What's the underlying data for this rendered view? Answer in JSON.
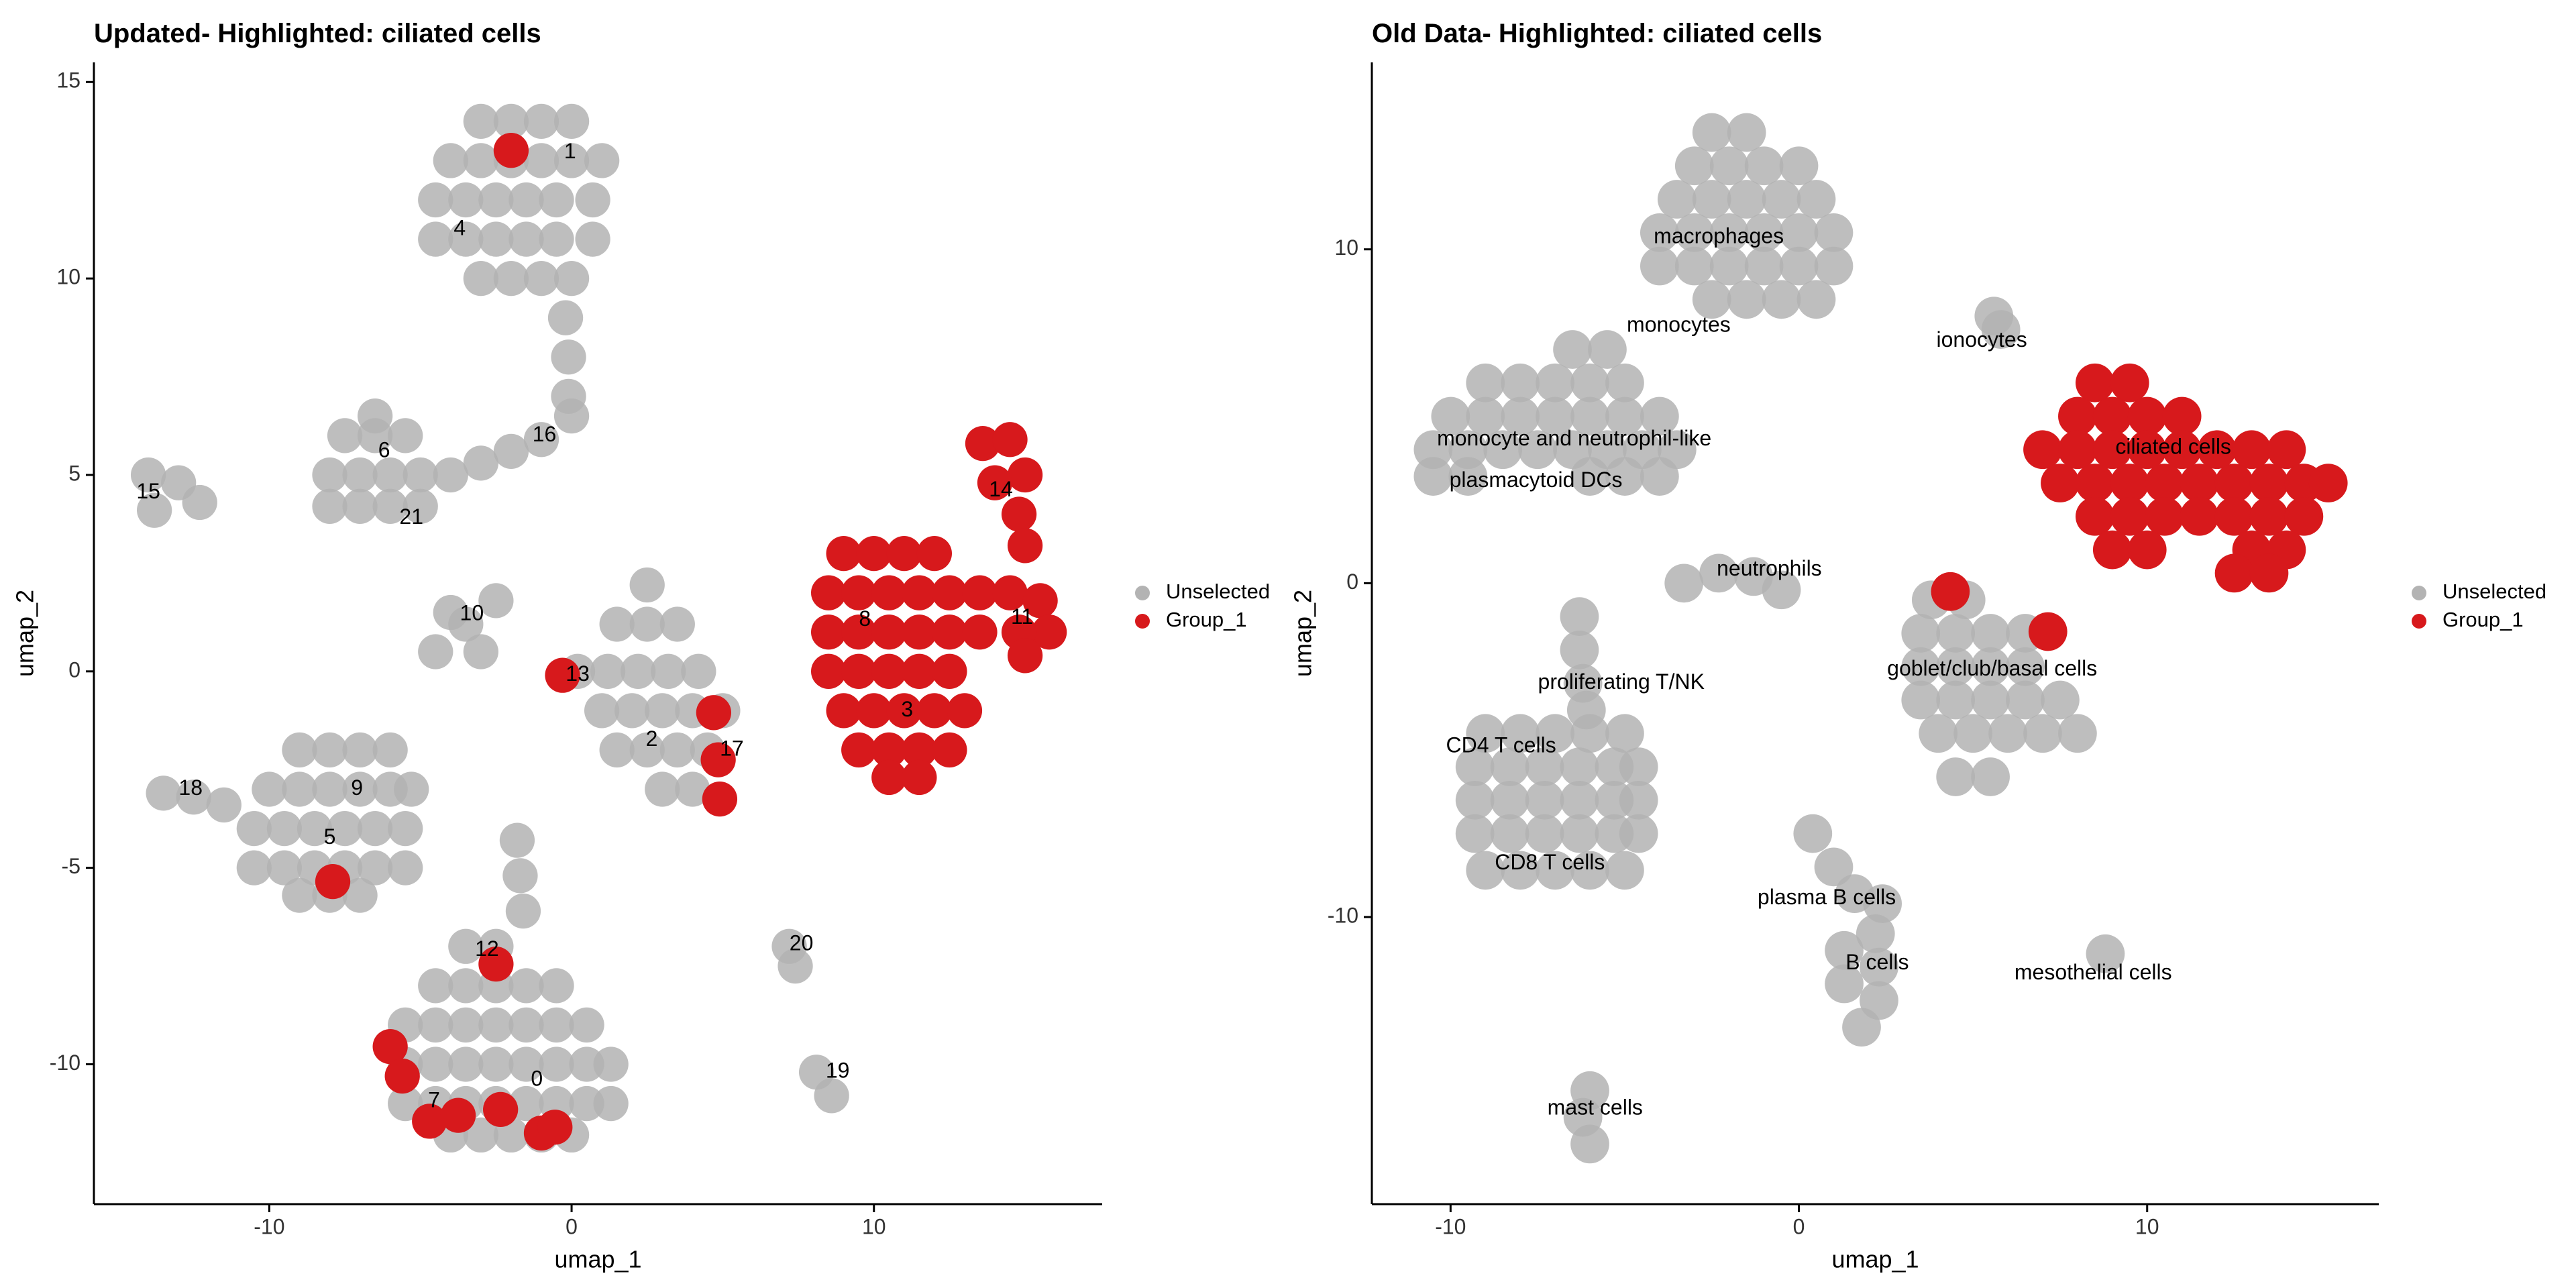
{
  "chart_data": [
    {
      "type": "scatter",
      "title": "Updated- Highlighted: ciliated cells",
      "x_label": "umap_1",
      "y_label": "umap_2",
      "xlim": [
        -15.8,
        17.55
      ],
      "ylim": [
        -13.56,
        15.5
      ],
      "xticks": [
        -10,
        0,
        10
      ],
      "yticks": [
        -10,
        -5,
        0,
        5,
        10,
        15
      ],
      "legend": "right",
      "series": [
        {
          "name": "Unselected",
          "color": "#b3b3b3",
          "x": [
            -3,
            -2,
            -1,
            0,
            -4,
            -3,
            -2,
            -1,
            0,
            1,
            -4.5,
            -3.5,
            -2.5,
            -1.5,
            -0.5,
            0.7,
            -4.5,
            -3.5,
            -2.5,
            -1.5,
            -0.5,
            0.7,
            -3,
            -2,
            -1,
            0,
            -0.2,
            -0.1,
            -0.1,
            0,
            -3,
            -2,
            -1,
            -6.5,
            -7.5,
            -6.5,
            -5.5,
            -8,
            -7,
            -6,
            -5,
            -4,
            -8,
            -7,
            -6,
            -5,
            -14,
            -13,
            -12.3,
            -13.8,
            -4.5,
            -3.5,
            -2.5,
            -4,
            -3,
            2.5,
            1.5,
            2.5,
            3.5,
            0.2,
            1.2,
            2.2,
            3.2,
            4.2,
            1,
            2,
            3,
            4,
            5,
            1.5,
            2.5,
            3.5,
            4.5,
            3,
            4,
            -9,
            -8,
            -7,
            -6,
            -10,
            -9,
            -8,
            -7,
            -6,
            -5.3,
            -10.5,
            -9.5,
            -8.5,
            -7.5,
            -6.5,
            -5.5,
            -10.5,
            -9.5,
            -8.5,
            -7.5,
            -6.5,
            -5.5,
            -9,
            -8,
            -7,
            -13.5,
            -12.5,
            -11.5,
            -3.5,
            -2.5,
            -4.5,
            -3.5,
            -2.5,
            -1.5,
            -0.5,
            -5.5,
            -4.5,
            -3.5,
            -2.5,
            -1.5,
            -0.5,
            0.5,
            -5.5,
            -4.5,
            -3.5,
            -2.5,
            -1.5,
            -0.5,
            0.5,
            1.3,
            -5.5,
            -4.5,
            -3.5,
            -2.5,
            -1.5,
            -0.5,
            0.5,
            1.3,
            -4,
            -3,
            -2,
            -1,
            0,
            -1.8,
            -1.7,
            -1.6,
            7.2,
            7.4,
            8.1,
            8.6
          ],
          "values": [
            14,
            14,
            14,
            14,
            13,
            13,
            13,
            13,
            13,
            13,
            12,
            12,
            12,
            12,
            12,
            12,
            11,
            11,
            11,
            11,
            11,
            11,
            10,
            10,
            10,
            10,
            9,
            8,
            7,
            6.5,
            5.3,
            5.6,
            5.9,
            6.5,
            6,
            6,
            6,
            5,
            5,
            5,
            5,
            5,
            4.2,
            4.2,
            4.2,
            4.2,
            5,
            4.8,
            4.3,
            4.1,
            0.5,
            1.2,
            1.8,
            1.5,
            0.5,
            2.2,
            1.2,
            1.2,
            1.2,
            0,
            0,
            0,
            0,
            0,
            -1,
            -1,
            -1,
            -1,
            -1,
            -2,
            -2,
            -2,
            -2,
            -3,
            -3,
            -2,
            -2,
            -2,
            -2,
            -3,
            -3,
            -3,
            -3,
            -3,
            -3,
            -4,
            -4,
            -4,
            -4,
            -4,
            -4,
            -5,
            -5,
            -5,
            -5,
            -5,
            -5,
            -5.7,
            -5.7,
            -5.7,
            -3.1,
            -3.2,
            -3.4,
            -7,
            -7,
            -8,
            -8,
            -8,
            -8,
            -8,
            -9,
            -9,
            -9,
            -9,
            -9,
            -9,
            -9,
            -10,
            -10,
            -10,
            -10,
            -10,
            -10,
            -10,
            -10,
            -11,
            -11,
            -11,
            -11,
            -11,
            -11,
            -11,
            -11,
            -11.8,
            -11.8,
            -11.8,
            -11.8,
            -11.8,
            -4.3,
            -5.2,
            -6.1,
            -7,
            -7.5,
            -10.2,
            -10.8
          ]
        },
        {
          "name": "Group_1",
          "color": "#d7191c",
          "x": [
            9,
            10,
            11,
            12,
            8.5,
            9.5,
            10.5,
            11.5,
            12.5,
            13.5,
            8.5,
            9.5,
            10.5,
            11.5,
            12.5,
            13.5,
            8.5,
            9.5,
            10.5,
            11.5,
            12.5,
            9,
            10,
            11,
            12,
            13,
            9.5,
            10.5,
            11.5,
            12.5,
            10.5,
            11.5,
            13.6,
            14.5,
            15,
            14,
            14.8,
            15,
            14.5,
            15.5,
            15.8,
            14.8,
            15,
            -2,
            -0.3,
            4.7,
            4.85,
            4.9,
            -7.9,
            -2.5,
            -6,
            -5.6,
            -4.7,
            -3.75,
            -2.35,
            -1,
            -0.55
          ],
          "values": [
            3,
            3,
            3,
            3,
            2,
            2,
            2,
            2,
            2,
            2,
            1,
            1,
            1,
            1,
            1,
            1,
            0,
            0,
            0,
            0,
            0,
            -1,
            -1,
            -1,
            -1,
            -1,
            -2,
            -2,
            -2,
            -2,
            -2.7,
            -2.7,
            5.8,
            5.9,
            5,
            4.8,
            4,
            3.2,
            2,
            1.8,
            1,
            1,
            0.4,
            13.26,
            -0.1,
            -1.05,
            -2.25,
            -3.25,
            -5.35,
            -7.45,
            -9.55,
            -10.3,
            -11.45,
            -11.3,
            -11.15,
            -11.75,
            -11.6
          ]
        }
      ],
      "annotations": [
        {
          "text": "1",
          "x": -0.05,
          "y": 13.2
        },
        {
          "text": "4",
          "x": -3.7,
          "y": 11.25
        },
        {
          "text": "16",
          "x": -0.9,
          "y": 6.0
        },
        {
          "text": "6",
          "x": -6.2,
          "y": 5.6
        },
        {
          "text": "15",
          "x": -14.0,
          "y": 4.55
        },
        {
          "text": "21",
          "x": -5.3,
          "y": 3.9
        },
        {
          "text": "14",
          "x": 14.2,
          "y": 4.6
        },
        {
          "text": "10",
          "x": -3.3,
          "y": 1.45
        },
        {
          "text": "8",
          "x": 9.7,
          "y": 1.3
        },
        {
          "text": "11",
          "x": 14.9,
          "y": 1.35
        },
        {
          "text": "13",
          "x": 0.2,
          "y": -0.1
        },
        {
          "text": "3",
          "x": 11.1,
          "y": -1.0
        },
        {
          "text": "2",
          "x": 2.65,
          "y": -1.75
        },
        {
          "text": "17",
          "x": 5.3,
          "y": -2.0
        },
        {
          "text": "18",
          "x": -12.6,
          "y": -3.0
        },
        {
          "text": "9",
          "x": -7.1,
          "y": -3.0
        },
        {
          "text": "5",
          "x": -8.0,
          "y": -4.25
        },
        {
          "text": "20",
          "x": 7.6,
          "y": -6.95
        },
        {
          "text": "12",
          "x": -2.8,
          "y": -7.1
        },
        {
          "text": "0",
          "x": -1.15,
          "y": -10.4
        },
        {
          "text": "19",
          "x": 8.8,
          "y": -10.2
        },
        {
          "text": "7",
          "x": -4.55,
          "y": -10.95
        }
      ]
    },
    {
      "type": "scatter",
      "title": "Old Data- Highlighted: ciliated cells",
      "x_label": "umap_1",
      "y_label": "umap_2",
      "xlim": [
        -12.26,
        16.65
      ],
      "ylim": [
        -18.6,
        15.6
      ],
      "xticks": [
        -10,
        0,
        10
      ],
      "yticks": [
        -10,
        0,
        10
      ],
      "legend": "right",
      "series": [
        {
          "name": "Unselected",
          "color": "#b3b3b3",
          "x": [
            -2.5,
            -1.5,
            -3,
            -2,
            -1,
            0,
            -3.5,
            -2.5,
            -1.5,
            -0.5,
            0.5,
            -4,
            -3,
            -2,
            -1,
            0,
            1,
            -4,
            -3,
            -2,
            -1,
            0,
            1,
            -2.5,
            -1.5,
            -0.5,
            0.5,
            -6.5,
            -5.5,
            -9,
            -8,
            -7,
            -6,
            -5,
            -10,
            -9,
            -8,
            -7,
            -6,
            -5,
            -4,
            -10.5,
            -9.5,
            -8.5,
            -7.5,
            -6.5,
            -5.5,
            -4.5,
            -3.5,
            -10.5,
            -9.5,
            -6,
            -5,
            -4,
            5.6,
            5.8,
            -3.3,
            -2.3,
            -1.3,
            -0.5,
            -6.3,
            -6.3,
            -6.2,
            -6.1,
            -9,
            -8,
            -7,
            -6,
            -5,
            -9.3,
            -8.3,
            -7.3,
            -6.3,
            -5.3,
            -4.6,
            -9.3,
            -8.3,
            -7.3,
            -6.3,
            -5.3,
            -4.6,
            -9.3,
            -8.3,
            -7.3,
            -6.3,
            -5.3,
            -4.6,
            -9,
            -8,
            -7,
            -6,
            -5,
            3.8,
            4.8,
            3.5,
            4.5,
            5.5,
            6.5,
            3.5,
            4.5,
            5.5,
            6.5,
            3.5,
            4.5,
            5.5,
            6.5,
            7.5,
            4,
            5,
            6,
            7,
            8,
            4.5,
            5.5,
            0.4,
            1,
            1.6,
            2.4,
            2.2,
            1.3,
            2.3,
            1.3,
            2.3,
            1.8,
            8.8,
            -6,
            -6.2,
            -6
          ],
          "values": [
            13.5,
            13.5,
            12.5,
            12.5,
            12.5,
            12.5,
            11.5,
            11.5,
            11.5,
            11.5,
            11.5,
            10.5,
            10.5,
            10.5,
            10.5,
            10.5,
            10.5,
            9.5,
            9.5,
            9.5,
            9.5,
            9.5,
            9.5,
            8.5,
            8.5,
            8.5,
            8.5,
            7,
            7,
            6,
            6,
            6,
            6,
            6,
            5,
            5,
            5,
            5,
            5,
            5,
            5,
            4,
            4,
            4,
            4,
            4,
            4,
            4,
            4,
            3.2,
            3.2,
            3.2,
            3.2,
            3.2,
            8,
            7.6,
            0,
            0.3,
            0.2,
            -0.2,
            -1,
            -2,
            -3,
            -3.8,
            -4.5,
            -4.5,
            -4.5,
            -4.5,
            -4.5,
            -5.5,
            -5.5,
            -5.5,
            -5.5,
            -5.5,
            -5.5,
            -6.5,
            -6.5,
            -6.5,
            -6.5,
            -6.5,
            -6.5,
            -7.5,
            -7.5,
            -7.5,
            -7.5,
            -7.5,
            -7.5,
            -8.6,
            -8.6,
            -8.6,
            -8.6,
            -8.6,
            -0.5,
            -0.5,
            -1.5,
            -1.5,
            -1.5,
            -1.5,
            -2.5,
            -2.5,
            -2.5,
            -2.5,
            -3.5,
            -3.5,
            -3.5,
            -3.5,
            -3.5,
            -4.5,
            -4.5,
            -4.5,
            -4.5,
            -4.5,
            -5.8,
            -5.8,
            -7.5,
            -8.5,
            -9.3,
            -9.6,
            -10.5,
            -11,
            -11.5,
            -12,
            -12.5,
            -13.3,
            -11.1,
            -15.2,
            -16,
            -16.8
          ]
        },
        {
          "name": "Group_1",
          "color": "#d7191c",
          "x": [
            8.5,
            9.5,
            8,
            9,
            10,
            11,
            7,
            8,
            9,
            10,
            11,
            12,
            13,
            14,
            7.5,
            8.5,
            9.5,
            10.5,
            11.5,
            12.5,
            13.5,
            14.5,
            15.2,
            8.5,
            9.5,
            10.5,
            11.5,
            12.5,
            13.5,
            14.5,
            9,
            10,
            13,
            14,
            12.5,
            13.5,
            4.35,
            7.15
          ],
          "values": [
            6,
            6,
            5,
            5,
            5,
            5,
            4,
            4,
            4,
            4,
            4,
            4,
            4,
            4,
            3,
            3,
            3,
            3,
            3,
            3,
            3,
            3,
            3,
            2,
            2,
            2,
            2,
            2,
            2,
            2,
            1,
            1,
            1,
            1,
            0.3,
            0.3,
            -0.25,
            -1.45
          ]
        }
      ],
      "annotations": [
        {
          "text": "macrophages",
          "x": -2.3,
          "y": 10.35
        },
        {
          "text": "monocytes",
          "x": -3.45,
          "y": 7.7
        },
        {
          "text": "ionocytes",
          "x": 5.25,
          "y": 7.25
        },
        {
          "text": "monocyte and neutrophil-like",
          "x": -6.45,
          "y": 4.3
        },
        {
          "text": "ciliated cells",
          "x": 10.75,
          "y": 4.05
        },
        {
          "text": "plasmacytoid DCs",
          "x": -7.55,
          "y": 3.05
        },
        {
          "text": "neutrophils",
          "x": -0.85,
          "y": 0.4
        },
        {
          "text": "goblet/club/basal cells",
          "x": 5.55,
          "y": -2.6
        },
        {
          "text": "proliferating T/NK",
          "x": -5.1,
          "y": -3.0
        },
        {
          "text": "CD4 T cells",
          "x": -8.55,
          "y": -4.9
        },
        {
          "text": "CD8 T cells",
          "x": -7.15,
          "y": -8.4
        },
        {
          "text": "plasma B cells",
          "x": 0.8,
          "y": -9.45
        },
        {
          "text": "B cells",
          "x": 2.25,
          "y": -11.4
        },
        {
          "text": "mesothelial cells",
          "x": 8.45,
          "y": -11.7
        },
        {
          "text": "mast cells",
          "x": -5.85,
          "y": -15.75
        }
      ]
    }
  ]
}
